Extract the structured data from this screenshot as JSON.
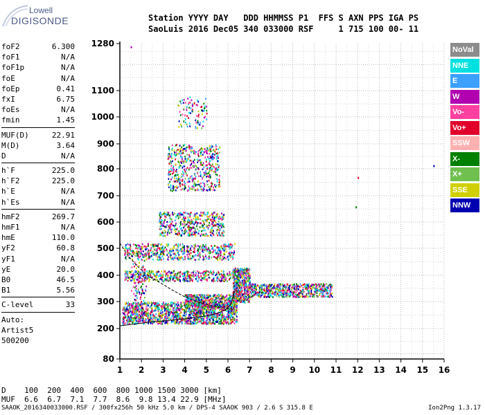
{
  "logo": {
    "brand": "Lowell",
    "product": "DIGISONDE"
  },
  "header": {
    "line1": "Station YYYY DAY   DDD HHMMSS P1  FFS S AXN PPS IGA PS",
    "line2": "SaoLuis 2016 Dec05 340 033000 RSF     1 715 100 00- 11"
  },
  "params": {
    "group1": [
      {
        "key": "foF2",
        "value": "6.300"
      },
      {
        "key": "foF1",
        "value": "N/A"
      },
      {
        "key": "foF1p",
        "value": "N/A"
      },
      {
        "key": "foE",
        "value": "N/A"
      },
      {
        "key": "foEp",
        "value": "0.41"
      },
      {
        "key": "fxI",
        "value": "6.75"
      },
      {
        "key": "foEs",
        "value": "N/A"
      },
      {
        "key": "fmin",
        "value": "1.45"
      }
    ],
    "group2": [
      {
        "key": "MUF(D)",
        "value": "22.91"
      },
      {
        "key": "M(D)",
        "value": "3.64"
      },
      {
        "key": "D",
        "value": "N/A"
      }
    ],
    "group3": [
      {
        "key": "h`F",
        "value": "225.0"
      },
      {
        "key": "h`F2",
        "value": "225.0"
      },
      {
        "key": "h`E",
        "value": "N/A"
      },
      {
        "key": "h`Es",
        "value": "N/A"
      }
    ],
    "group4": [
      {
        "key": "hmF2",
        "value": "269.7"
      },
      {
        "key": "hmF1",
        "value": "N/A"
      },
      {
        "key": "hmE",
        "value": "110.0"
      },
      {
        "key": "yF2",
        "value": "60.8"
      },
      {
        "key": "yF1",
        "value": "N/A"
      },
      {
        "key": "yE",
        "value": "20.0"
      },
      {
        "key": "B0",
        "value": "46.5"
      },
      {
        "key": "B1",
        "value": "5.56"
      }
    ],
    "group5": [
      {
        "key": "C-level",
        "value": "33"
      }
    ],
    "tail": [
      "Auto:",
      "Artist5",
      "500200"
    ]
  },
  "legend": [
    {
      "label": "NoVal",
      "color": "#8c8c8c"
    },
    {
      "label": "NNE",
      "color": "#00e0e0"
    },
    {
      "label": "E",
      "color": "#3ca0ff"
    },
    {
      "label": "W",
      "color": "#b000b0"
    },
    {
      "label": "Vo-",
      "color": "#ff40a0"
    },
    {
      "label": "Vo+",
      "color": "#e0002a"
    },
    {
      "label": "SSW",
      "color": "#ffb0b0"
    },
    {
      "label": "X-",
      "color": "#008000"
    },
    {
      "label": "X+",
      "color": "#70c050"
    },
    {
      "label": "SSE",
      "color": "#d0d000"
    },
    {
      "label": "NNW",
      "color": "#0000b0"
    }
  ],
  "bottom": {
    "d_line": "D    100  200  400  600  800 1000 1500 3000 [km]",
    "muf_line": "MUF  6.6  6.7  7.1  7.7  8.6  9.8 13.4 22.9 [MHz]",
    "footer": "SAAOK_2016340033000.RSF / 300fx256h 50 kHz 5.0 km / DPS-4 SAAOK 903 / 2.6 S 315.8 E",
    "version": "Ion2Png 1.3.17"
  },
  "chart_data": {
    "type": "scatter",
    "xlim": [
      1,
      16
    ],
    "ylim_label_range": [
      80,
      1280
    ],
    "x_ticks": [
      "1",
      "2",
      "3",
      "4",
      "5",
      "6",
      "7",
      "8",
      "9",
      "10",
      "11",
      "12",
      "13",
      "14",
      "15",
      "16"
    ],
    "y_ticks": [
      {
        "value": 80,
        "label": "80"
      },
      {
        "value": 200,
        "label": "200"
      },
      {
        "value": 300,
        "label": "300"
      },
      {
        "value": 400,
        "label": "400"
      },
      {
        "value": 500,
        "label": "500"
      },
      {
        "value": 600,
        "label": "600"
      },
      {
        "value": 700,
        "label": "700"
      },
      {
        "value": 800,
        "label": "800"
      },
      {
        "value": 900,
        "label": "900"
      },
      {
        "value": 1000,
        "label": "1000"
      },
      {
        "value": 1100,
        "label": "1100"
      },
      {
        "value": 1280,
        "label": "1280"
      }
    ],
    "grid": true,
    "profile_curve": [
      [
        1.0,
        520
      ],
      [
        1.4,
        470
      ],
      [
        1.8,
        435
      ],
      [
        2.2,
        405
      ],
      [
        2.8,
        375
      ],
      [
        3.4,
        345
      ],
      [
        4.0,
        318
      ],
      [
        4.6,
        298
      ],
      [
        5.2,
        285
      ],
      [
        5.8,
        276
      ],
      [
        6.2,
        271
      ],
      [
        6.3,
        270
      ]
    ],
    "trace_curve": [
      [
        1.0,
        210
      ],
      [
        1.5,
        215
      ],
      [
        2.0,
        220
      ],
      [
        2.5,
        225
      ],
      [
        3.0,
        228
      ],
      [
        3.5,
        232
      ],
      [
        4.0,
        236
      ],
      [
        4.5,
        241
      ],
      [
        5.0,
        247
      ],
      [
        5.5,
        256
      ],
      [
        5.9,
        270
      ],
      [
        6.15,
        292
      ],
      [
        6.3,
        340
      ]
    ],
    "echo_regions": [
      {
        "x": [
          1.1,
          6.4
        ],
        "y": [
          220,
          300
        ],
        "density": 1400
      },
      {
        "x": [
          4.0,
          6.4
        ],
        "y": [
          280,
          330
        ],
        "density": 500
      },
      {
        "x": [
          6.2,
          7.0
        ],
        "y": [
          300,
          430
        ],
        "density": 500
      },
      {
        "x": [
          7.0,
          10.8
        ],
        "y": [
          320,
          370
        ],
        "density": 600
      },
      {
        "x": [
          1.2,
          6.2
        ],
        "y": [
          380,
          420
        ],
        "density": 450
      },
      {
        "x": [
          1.2,
          6.3
        ],
        "y": [
          460,
          520
        ],
        "density": 550
      },
      {
        "x": [
          2.8,
          5.8
        ],
        "y": [
          550,
          640
        ],
        "density": 450
      },
      {
        "x": [
          3.2,
          5.6
        ],
        "y": [
          720,
          900
        ],
        "density": 500
      },
      {
        "x": [
          3.6,
          5.0
        ],
        "y": [
          960,
          1080
        ],
        "density": 90
      },
      {
        "x": [
          1.5,
          2.2
        ],
        "y": [
          240,
          500
        ],
        "density": 120
      }
    ]
  }
}
